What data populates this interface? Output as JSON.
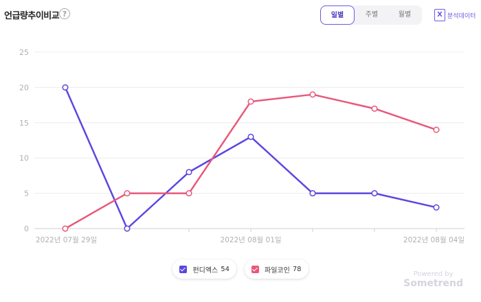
{
  "header": {
    "title": "언급량추이비교",
    "help_icon": "question-circle-icon",
    "tabs": [
      {
        "label": "일별",
        "active": true
      },
      {
        "label": "주별",
        "active": false
      },
      {
        "label": "월별",
        "active": false
      }
    ],
    "export_label": "분석데이터",
    "export_icon": "excel-icon"
  },
  "chart_data": {
    "type": "line",
    "x": [
      "2022년 07월 29일",
      "",
      "",
      "2022년 08월 01일",
      "",
      "",
      "2022년 08월 04일"
    ],
    "xlabel": "",
    "ylabel": "",
    "ylim": [
      0,
      25
    ],
    "yticks": [
      0,
      5,
      10,
      15,
      20,
      25
    ],
    "grid": true,
    "legend_position": "bottom",
    "series": [
      {
        "name": "펀디엑스",
        "total": "54",
        "color": "#5b47e0",
        "values": [
          20,
          0,
          8,
          13,
          5,
          5,
          3
        ]
      },
      {
        "name": "파일코인",
        "total": "78",
        "color": "#e8587a",
        "values": [
          0,
          5,
          5,
          18,
          19,
          17,
          14
        ]
      }
    ]
  },
  "footer": {
    "powered_label": "Powered by",
    "brand": "Sometrend"
  }
}
